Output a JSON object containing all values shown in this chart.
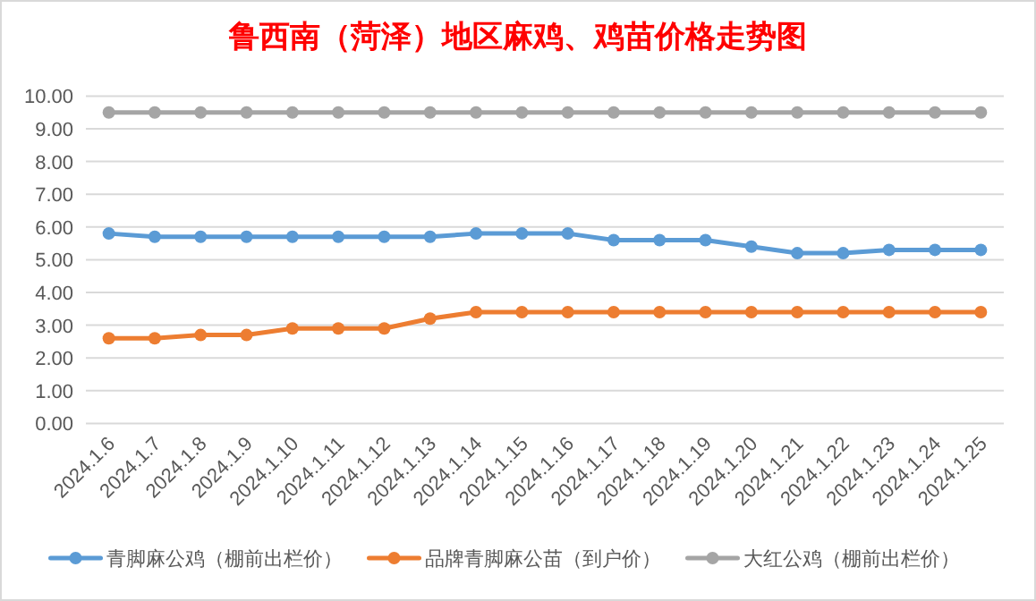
{
  "chart_data": {
    "type": "line",
    "title": "鲁西南（菏泽）地区麻鸡、鸡苗价格走势图",
    "categories": [
      "2024.1.6",
      "2024.1.7",
      "2024.1.8",
      "2024.1.9",
      "2024.1.10",
      "2024.1.11",
      "2024.1.12",
      "2024.1.13",
      "2024.1.14",
      "2024.1.15",
      "2024.1.16",
      "2024.1.17",
      "2024.1.18",
      "2024.1.19",
      "2024.1.20",
      "2024.1.21",
      "2024.1.22",
      "2024.1.23",
      "2024.1.24",
      "2024.1.25"
    ],
    "series": [
      {
        "name": "青脚麻公鸡（棚前出栏价）",
        "color": "#5b9bd5",
        "values": [
          5.8,
          5.7,
          5.7,
          5.7,
          5.7,
          5.7,
          5.7,
          5.7,
          5.8,
          5.8,
          5.8,
          5.6,
          5.6,
          5.6,
          5.4,
          5.2,
          5.2,
          5.3,
          5.3,
          5.3
        ]
      },
      {
        "name": "品牌青脚麻公苗（到户价）",
        "color": "#ed7d31",
        "values": [
          2.6,
          2.6,
          2.7,
          2.7,
          2.9,
          2.9,
          2.9,
          3.2,
          3.4,
          3.4,
          3.4,
          3.4,
          3.4,
          3.4,
          3.4,
          3.4,
          3.4,
          3.4,
          3.4,
          3.4
        ]
      },
      {
        "name": "大红公鸡（棚前出栏价）",
        "color": "#a5a5a5",
        "values": [
          9.5,
          9.5,
          9.5,
          9.5,
          9.5,
          9.5,
          9.5,
          9.5,
          9.5,
          9.5,
          9.5,
          9.5,
          9.5,
          9.5,
          9.5,
          9.5,
          9.5,
          9.5,
          9.5,
          9.5
        ]
      }
    ],
    "ylim": [
      0,
      10
    ],
    "yticks": [
      {
        "value": 0,
        "label": "0.00"
      },
      {
        "value": 1,
        "label": "1.00"
      },
      {
        "value": 2,
        "label": "2.00"
      },
      {
        "value": 3,
        "label": "3.00"
      },
      {
        "value": 4,
        "label": "4.00"
      },
      {
        "value": 5,
        "label": "5.00"
      },
      {
        "value": 6,
        "label": "6.00"
      },
      {
        "value": 7,
        "label": "7.00"
      },
      {
        "value": 8,
        "label": "8.00"
      },
      {
        "value": 9,
        "label": "9.00"
      },
      {
        "value": 10,
        "label": "10.00"
      }
    ],
    "grid": "y",
    "legend": "bottom",
    "marker": "circle",
    "line_style": "solid"
  }
}
